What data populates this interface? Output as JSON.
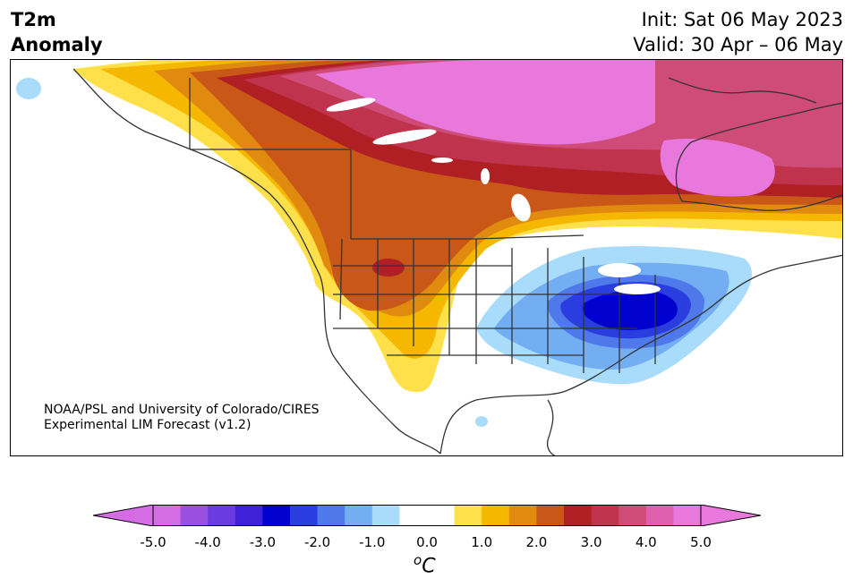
{
  "header": {
    "title_line1": "T2m",
    "title_line2": "Anomaly",
    "init": "Init: Sat 06 May 2023",
    "valid": "Valid: 30 Apr – 06 May"
  },
  "credit": {
    "line1": "NOAA/PSL and University of Colorado/CIRES",
    "line2": "Experimental LIM Forecast (v1.2)"
  },
  "colorbar": {
    "unit_base": "C",
    "unit_sup": "o",
    "tick_labels": [
      "-5.0",
      "-4.0",
      "-3.0",
      "-2.0",
      "-1.0",
      "0.0",
      "1.0",
      "2.0",
      "3.0",
      "4.0",
      "5.0"
    ],
    "colors": [
      "#d46ce4",
      "#9b4fe0",
      "#6a3be0",
      "#3f22d8",
      "#0000cf",
      "#2a3ee0",
      "#4f78ea",
      "#74aef2",
      "#a9dcfb",
      "#ffffff",
      "#ffffff",
      "#fde04a",
      "#f5b700",
      "#e08a10",
      "#c85718",
      "#b01f24",
      "#c0334d",
      "#d04c78",
      "#e060b0",
      "#e878dc"
    ],
    "under_color": "#d46ce4",
    "over_color": "#e878dc"
  }
}
